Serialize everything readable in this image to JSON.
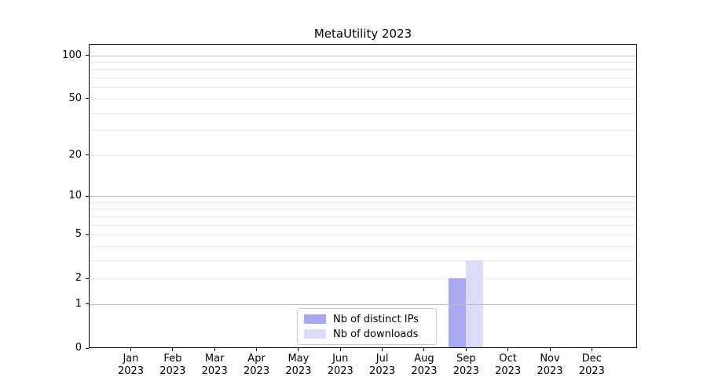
{
  "figure": {
    "background": "#ffffff"
  },
  "chart_data": {
    "type": "bar",
    "title": "MetaUtility 2023",
    "xlabel": "",
    "ylabel": "",
    "categories": [
      "Jan",
      "Feb",
      "Mar",
      "Apr",
      "May",
      "Jun",
      "Jul",
      "Aug",
      "Sep",
      "Oct",
      "Nov",
      "Dec"
    ],
    "x_year_label": "2023",
    "series": [
      {
        "name": "Nb of distinct IPs",
        "color": "#a9a9f1",
        "values": [
          0,
          0,
          0,
          0,
          0,
          0,
          0,
          0,
          2,
          0,
          0,
          0
        ]
      },
      {
        "name": "Nb of downloads",
        "color": "#dcdcf8",
        "values": [
          0,
          0,
          0,
          0,
          0,
          0,
          0,
          0,
          3,
          0,
          0,
          0
        ]
      }
    ],
    "yscale": "log1p",
    "ylim": [
      0,
      120
    ],
    "ytick_values": [
      0,
      1,
      2,
      5,
      10,
      20,
      50,
      100
    ],
    "ytick_labels": [
      "0",
      "1",
      "2",
      "5",
      "10",
      "20",
      "50",
      "100"
    ],
    "grid": {
      "major_values": [
        1,
        10,
        100
      ],
      "minor_values": [
        2,
        3,
        4,
        5,
        6,
        7,
        8,
        9,
        20,
        30,
        40,
        50,
        60,
        70,
        80,
        90
      ],
      "major_color": "#bfbfbf",
      "minor_color": "#e9e9e9"
    },
    "legend": {
      "position": "lower center",
      "border_color": "#cccccc"
    }
  }
}
